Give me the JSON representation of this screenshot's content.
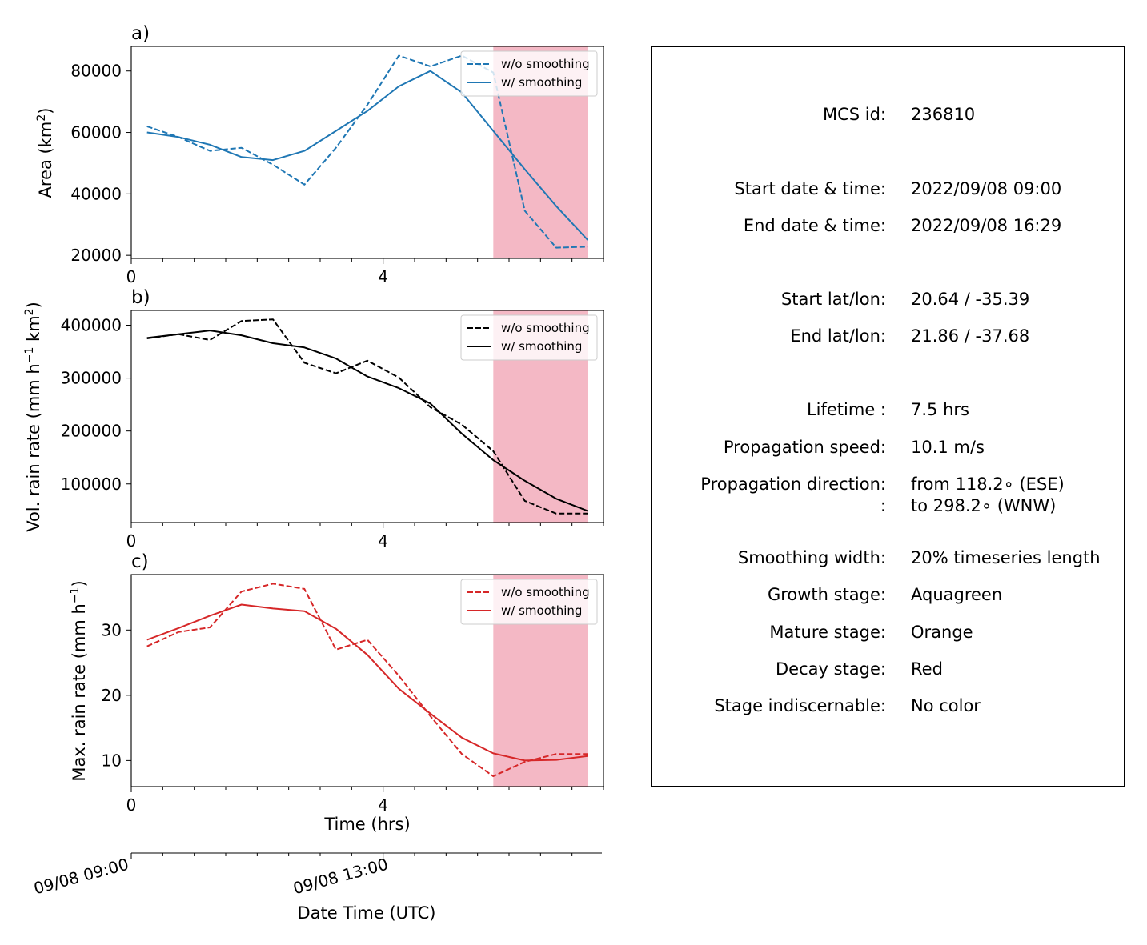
{
  "colors": {
    "area": "#1f77b4",
    "volume": "#000000",
    "maxrate": "#d62728",
    "decay_shade": "#f4b8c5"
  },
  "chart_data": [
    {
      "type": "line",
      "panel_label": "a)",
      "ylabel": "Area  (km²)",
      "ylabel_base": "Area  (km",
      "ylabel_sup": "2",
      "ylabel_close": ")",
      "xlim": [
        0,
        7.5
      ],
      "ylim": [
        19000,
        88000
      ],
      "xticks": [
        0,
        4
      ],
      "xtick_labels": [
        "0",
        "4"
      ],
      "yticks": [
        20000,
        40000,
        60000,
        80000
      ],
      "ytick_labels": [
        "20000",
        "40000",
        "60000",
        "80000"
      ],
      "shade_from": 5.75,
      "shade_to": 7.25,
      "legend_position": "top-right",
      "x": [
        0.25,
        0.75,
        1.25,
        1.75,
        2.25,
        2.75,
        3.25,
        3.75,
        4.25,
        4.75,
        5.25,
        5.75,
        6.25,
        6.75,
        7.25
      ],
      "series": [
        {
          "name": "w/o smoothing",
          "style": "dashed",
          "values": [
            62000,
            58500,
            54000,
            55000,
            49500,
            43000,
            55000,
            69000,
            85000,
            81500,
            85000,
            79500,
            34500,
            22500,
            22800
          ]
        },
        {
          "name": "w/ smoothing",
          "style": "solid",
          "values": [
            60000,
            58500,
            56000,
            52000,
            51000,
            54000,
            60500,
            67000,
            75000,
            80000,
            73000,
            60500,
            48000,
            36000,
            25000
          ]
        }
      ]
    },
    {
      "type": "line",
      "panel_label": "b)",
      "ylabel": "Vol. rain rate (mm h⁻¹ km²)",
      "ylabel_base": "Vol. rain rate (mm h",
      "ylabel_sup1": "−1",
      "ylabel_mid": " km",
      "ylabel_sup2": "2",
      "ylabel_close": ")",
      "xlim": [
        0,
        7.5
      ],
      "ylim": [
        27000,
        428000
      ],
      "xticks": [
        0,
        4
      ],
      "xtick_labels": [
        "0",
        "4"
      ],
      "yticks": [
        100000,
        200000,
        300000,
        400000
      ],
      "ytick_labels": [
        "100000",
        "200000",
        "300000",
        "400000"
      ],
      "shade_from": 5.75,
      "shade_to": 7.25,
      "legend_position": "top-right",
      "x": [
        0.25,
        0.75,
        1.25,
        1.75,
        2.25,
        2.75,
        3.25,
        3.75,
        4.25,
        4.75,
        5.25,
        5.75,
        6.25,
        6.75,
        7.25
      ],
      "series": [
        {
          "name": "w/o smoothing",
          "style": "dashed",
          "values": [
            375000,
            383000,
            372000,
            408000,
            411000,
            329000,
            309000,
            333000,
            301000,
            245000,
            212000,
            162000,
            68000,
            44000,
            44000
          ]
        },
        {
          "name": "w/ smoothing",
          "style": "solid",
          "values": [
            376000,
            383000,
            390000,
            381000,
            366000,
            358000,
            337000,
            303000,
            281000,
            252000,
            195000,
            145000,
            106000,
            72000,
            49000
          ]
        }
      ]
    },
    {
      "type": "line",
      "panel_label": "c)",
      "ylabel": "Max. rain rate  (mm h⁻¹)",
      "ylabel_base": "Max. rain rate  (mm h",
      "ylabel_sup": "−1",
      "ylabel_close": ")",
      "xlabel": "Time (hrs)",
      "xlim": [
        0,
        7.5
      ],
      "ylim": [
        6,
        38.5
      ],
      "xticks": [
        0,
        4
      ],
      "xtick_labels": [
        "0",
        "4"
      ],
      "yticks": [
        10,
        20,
        30
      ],
      "ytick_labels": [
        "10",
        "20",
        "30"
      ],
      "shade_from": 5.75,
      "shade_to": 7.25,
      "legend_position": "top-right",
      "x": [
        0.25,
        0.75,
        1.25,
        1.75,
        2.25,
        2.75,
        3.25,
        3.75,
        4.25,
        4.75,
        5.25,
        5.75,
        6.25,
        6.75,
        7.25
      ],
      "series": [
        {
          "name": "w/o smoothing",
          "style": "dashed",
          "values": [
            27.5,
            29.7,
            30.4,
            35.9,
            37.1,
            36.3,
            27.0,
            28.5,
            23.0,
            16.8,
            11.0,
            7.6,
            9.8,
            11.0,
            11.0
          ]
        },
        {
          "name": "w/ smoothing",
          "style": "solid",
          "values": [
            28.5,
            30.3,
            32.2,
            33.9,
            33.3,
            32.9,
            30.2,
            26.2,
            21.0,
            17.2,
            13.5,
            11.1,
            10.0,
            10.1,
            10.7
          ]
        }
      ]
    }
  ],
  "date_axis": {
    "xlabel": "Date Time (UTC)",
    "tick_labels": [
      "09/08 09:00",
      "09/08 13:00"
    ]
  },
  "info": {
    "rows": [
      {
        "label": "MCS id:",
        "value": "236810"
      },
      {
        "label": "Start date & time:",
        "value": "2022/09/08 09:00"
      },
      {
        "label": "End date & time:",
        "value": "2022/09/08 16:29"
      },
      {
        "label": "Start lat/lon:",
        "value": "20.64 / -35.39"
      },
      {
        "label": "End lat/lon:",
        "value": "21.86 / -37.68"
      },
      {
        "label": "Lifetime :",
        "value": "7.5 hrs"
      },
      {
        "label": "Propagation speed:",
        "value": "10.1 m/s"
      },
      {
        "label": "Propagation direction:",
        "value": "from 118.2∘ (ESE)"
      },
      {
        "label": ":",
        "value": "to   298.2∘ (WNW)"
      },
      {
        "label": "Smoothing width:",
        "value": "20% timeseries length"
      },
      {
        "label": "Growth stage:",
        "value": "Aquagreen"
      },
      {
        "label": "Mature stage:",
        "value": "Orange"
      },
      {
        "label": "Decay stage:",
        "value": "Red"
      },
      {
        "label": "Stage indiscernable:",
        "value": "No color"
      }
    ]
  }
}
